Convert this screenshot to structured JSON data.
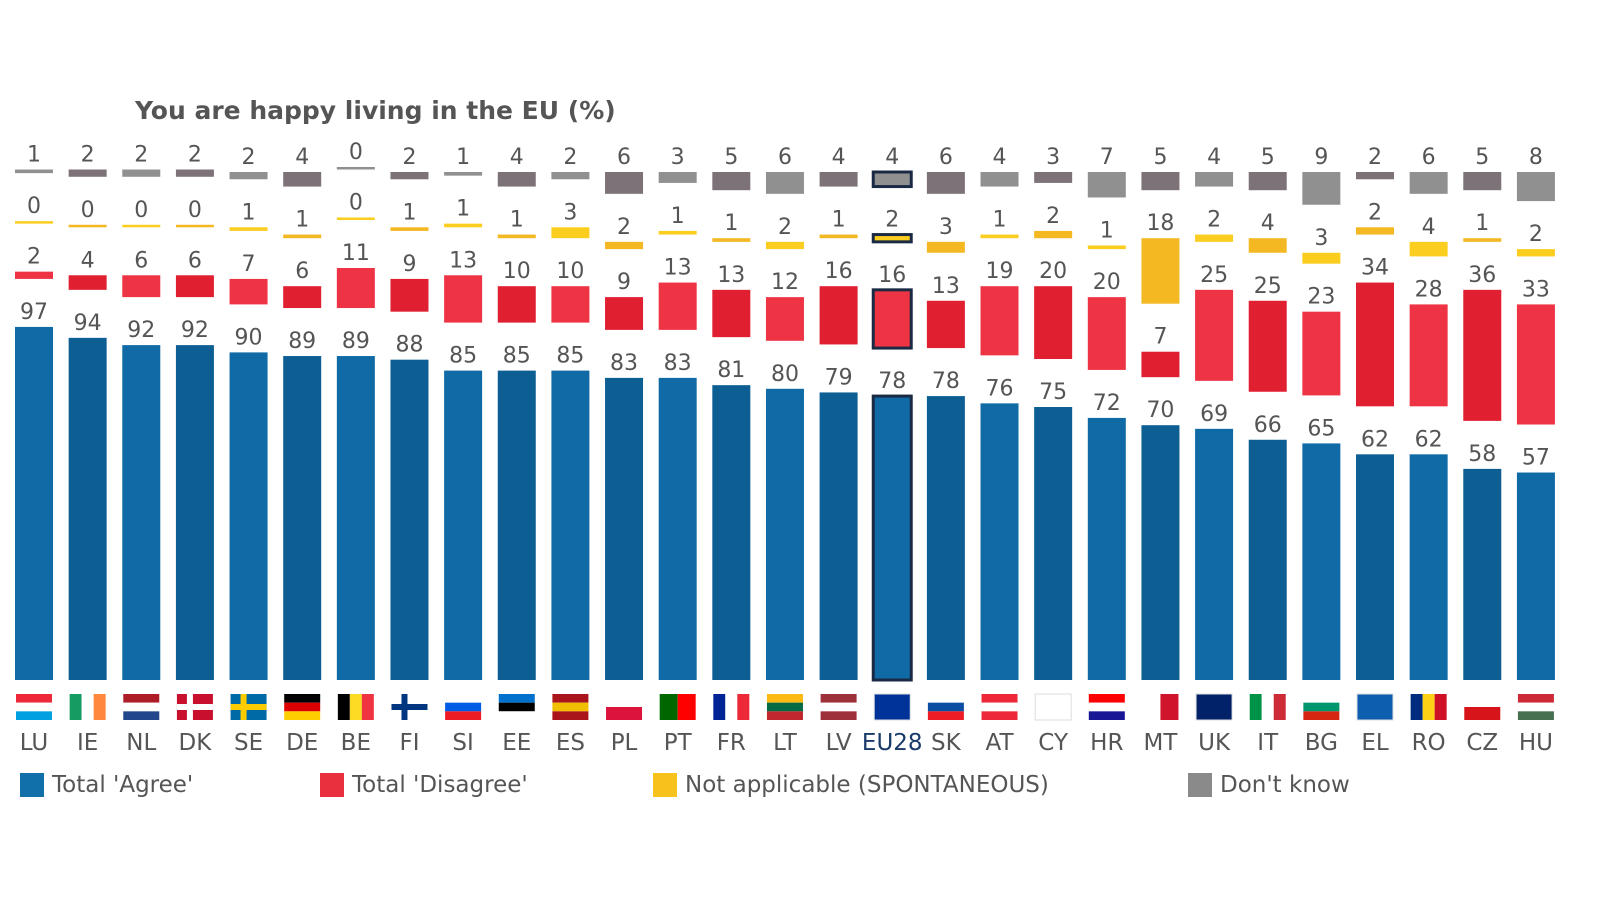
{
  "chart_data": {
    "type": "bar",
    "stacked": true,
    "title": "You are happy living in the EU  (%)",
    "categories": [
      "LU",
      "IE",
      "NL",
      "DK",
      "SE",
      "DE",
      "BE",
      "FI",
      "SI",
      "EE",
      "ES",
      "PL",
      "PT",
      "FR",
      "LT",
      "LV",
      "EU28",
      "SK",
      "AT",
      "CY",
      "HR",
      "MT",
      "UK",
      "IT",
      "BG",
      "EL",
      "RO",
      "CZ",
      "HU"
    ],
    "highlight_category": "EU28",
    "series": [
      {
        "name": "Total 'Agree'",
        "color": "#1170aa",
        "values": [
          97,
          94,
          92,
          92,
          90,
          89,
          89,
          88,
          85,
          85,
          85,
          83,
          83,
          81,
          80,
          79,
          78,
          78,
          76,
          75,
          72,
          70,
          69,
          66,
          65,
          62,
          62,
          58,
          57
        ]
      },
      {
        "name": "Total 'Disagree'",
        "color": "#e8303f",
        "values": [
          2,
          4,
          6,
          6,
          7,
          6,
          11,
          9,
          13,
          10,
          10,
          9,
          13,
          13,
          12,
          16,
          16,
          13,
          19,
          20,
          20,
          7,
          25,
          25,
          23,
          34,
          28,
          36,
          33
        ]
      },
      {
        "name": "Not applicable (SPONTANEOUS)",
        "color": "#f7c21b",
        "values": [
          0,
          0,
          0,
          0,
          1,
          1,
          0,
          1,
          1,
          1,
          3,
          2,
          1,
          1,
          2,
          1,
          2,
          3,
          1,
          2,
          1,
          18,
          2,
          4,
          3,
          2,
          4,
          1,
          2
        ]
      },
      {
        "name": "Don't know",
        "color": "#8a8a8a",
        "values": [
          1,
          2,
          2,
          2,
          2,
          4,
          0,
          2,
          1,
          4,
          2,
          6,
          3,
          5,
          6,
          4,
          4,
          6,
          4,
          3,
          7,
          5,
          4,
          5,
          9,
          2,
          6,
          5,
          8
        ]
      }
    ],
    "legend_position": "bottom",
    "grid": false,
    "y_axis_visible": false
  }
}
